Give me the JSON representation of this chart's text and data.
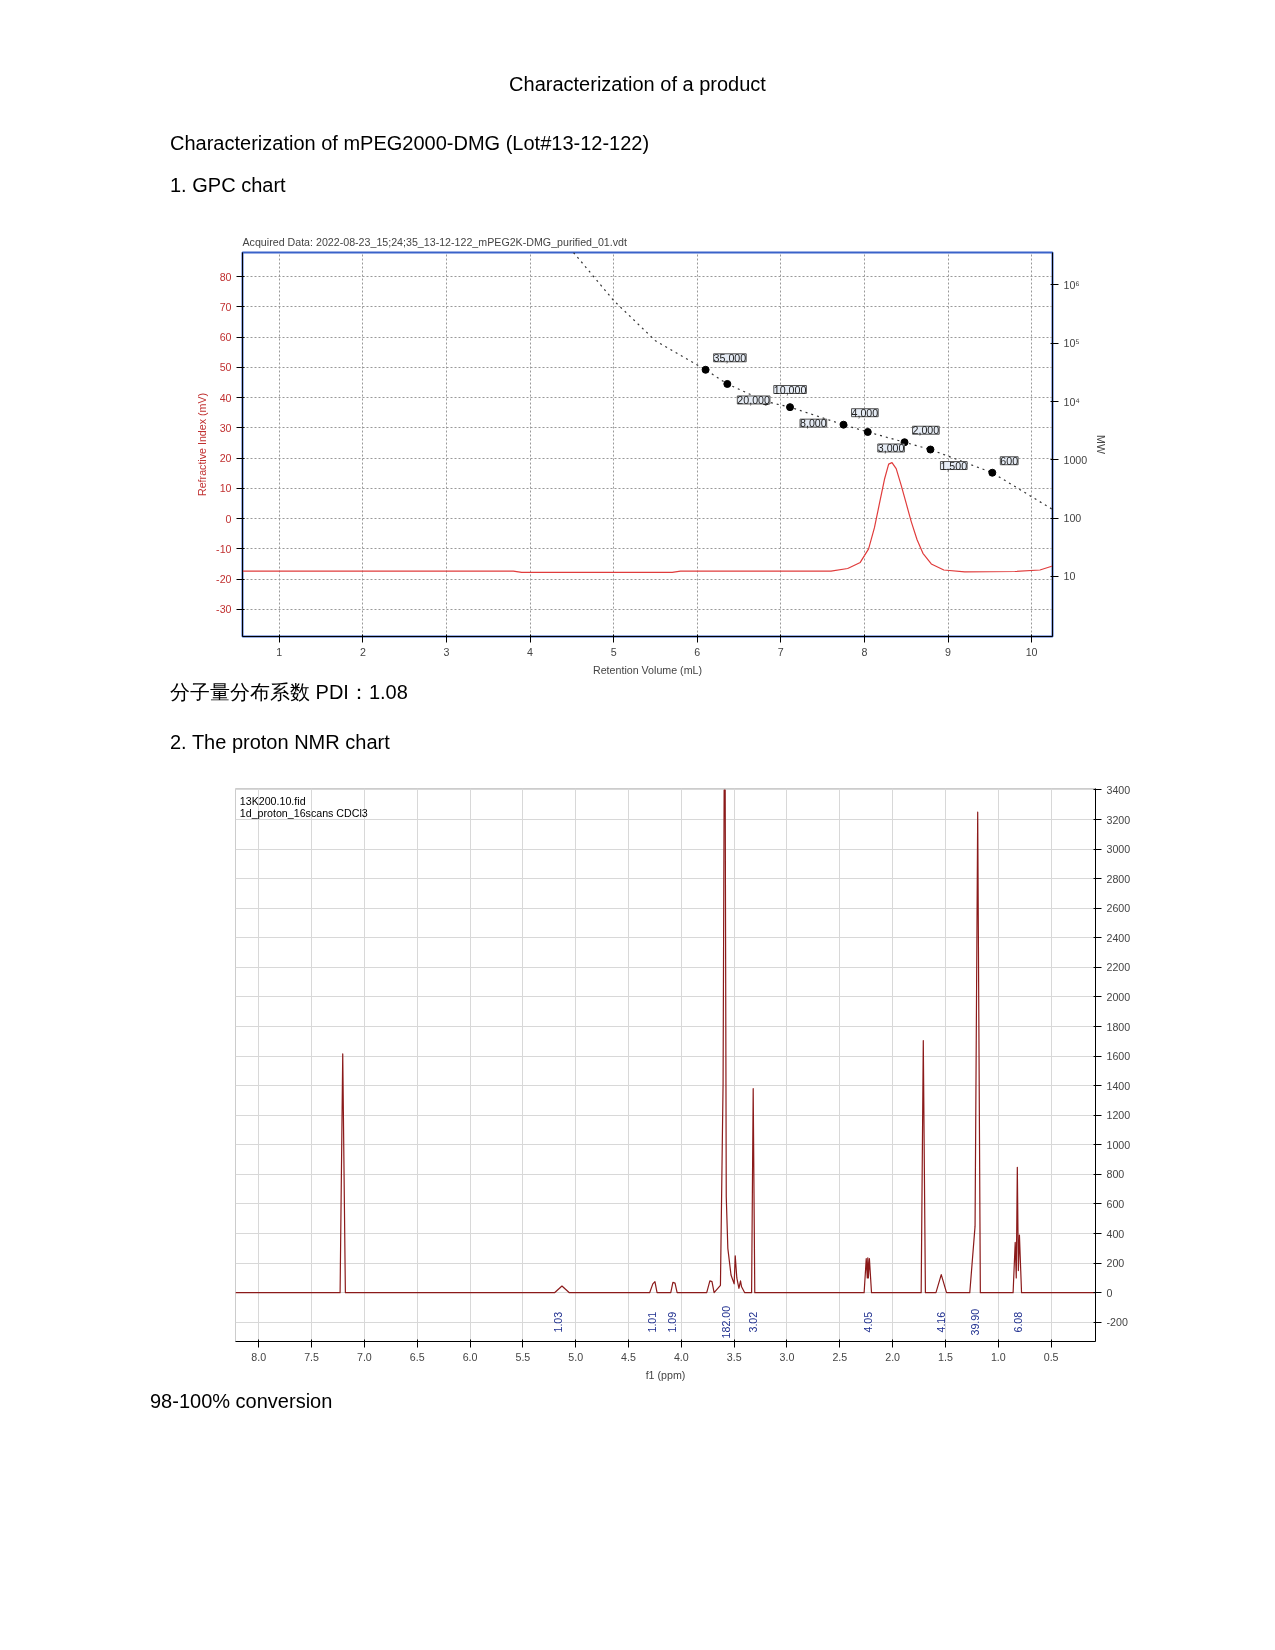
{
  "chart_data": [
    {
      "type": "line",
      "title": "Acquired Data: 2022-08-23_15;24;35_13-12-122_mPEG2K-DMG_purified_01.vdt",
      "xlabel": "Retention Volume (mL)",
      "ylabel": "Refractive Index (mV)",
      "y2label": "MW",
      "annotations": [
        "Characterization of a product",
        "Characterization of mPEG2000-DMG (Lot#13-12-122)",
        "1. GPC chart",
        "分子量分布系数 PDI：1.08"
      ],
      "xlim": [
        0.56,
        10.25
      ],
      "xticks": [
        1,
        2,
        3,
        4,
        5,
        6,
        7,
        8,
        9,
        10
      ],
      "ylim": [
        -39,
        88
      ],
      "yticks": [
        -30,
        -20,
        -10,
        0,
        10,
        20,
        30,
        40,
        50,
        60,
        70,
        80
      ],
      "y2lim": [
        0.93,
        3600000
      ],
      "y2ticks": [
        10,
        100,
        1000,
        {
          "value": 10000,
          "label": "10⁴"
        },
        {
          "value": 100000,
          "label": "10⁵"
        },
        {
          "value": 1000000,
          "label": "10⁶"
        }
      ],
      "log": "y2",
      "grid": true,
      "series": [
        {
          "type": "line",
          "color": "#e03c3c",
          "x": [
            0.56,
            3.8,
            3.9,
            5.7,
            5.8,
            7.6,
            7.8,
            7.95,
            8.05,
            8.12,
            8.18,
            8.24,
            8.29,
            8.33,
            8.38,
            8.44,
            8.5,
            8.56,
            8.63,
            8.7,
            8.8,
            8.95,
            9.2,
            9.8,
            10.1,
            10.25
          ],
          "values": [
            -17.4,
            -17.4,
            -17.8,
            -17.8,
            -17.4,
            -17.4,
            -16.5,
            -14.5,
            -10,
            -3,
            5,
            13,
            18,
            18.5,
            16.5,
            11,
            5,
            -1,
            -7,
            -11.5,
            -15,
            -17,
            -17.6,
            -17.5,
            -17,
            -15.7
          ]
        },
        {
          "type": "line",
          "axis": "y2",
          "line_style": "dotted",
          "color": "#333333",
          "x": [
            4.52,
            5.0,
            5.5,
            6.1,
            6.36,
            6.82,
            7.11,
            7.75,
            8.04,
            8.48,
            8.79,
            9.53,
            10.25
          ],
          "values": [
            3600000,
            540000,
            110000,
            35000,
            20000,
            10000,
            8000,
            4000,
            3000,
            2000,
            1500,
            600,
            141
          ]
        },
        {
          "type": "scatter",
          "axis": "y2",
          "marker": "circle",
          "color": "#000000",
          "x": [
            6.1,
            6.36,
            6.82,
            7.11,
            7.75,
            8.04,
            8.48,
            8.79,
            9.53
          ],
          "values": [
            35000,
            20000,
            10000,
            8000,
            4000,
            3000,
            2000,
            1500,
            600
          ],
          "value_labels": [
            "35,000",
            "20,000",
            "10,000",
            "8,000",
            "4,000",
            "3,000",
            "2,000",
            "1,500",
            "600"
          ]
        }
      ]
    },
    {
      "type": "line",
      "xlabel": "f1 (ppm)",
      "xlim": [
        8.22,
        0.08
      ],
      "xticks": [
        {
          "value": 8,
          "label": "8.0"
        },
        7.5,
        {
          "value": 7,
          "label": "7.0"
        },
        6.5,
        {
          "value": 6,
          "label": "6.0"
        },
        5.5,
        {
          "value": 5,
          "label": "5.0"
        },
        4.5,
        {
          "value": 4,
          "label": "4.0"
        },
        3.5,
        {
          "value": 3,
          "label": "3.0"
        },
        2.5,
        {
          "value": 2,
          "label": "2.0"
        },
        1.5,
        {
          "value": 1,
          "label": "1.0"
        },
        0.5
      ],
      "ylim": [
        -330,
        3410
      ],
      "yticks": [
        -200,
        0,
        200,
        400,
        600,
        800,
        1000,
        1200,
        1400,
        1600,
        1800,
        2000,
        2200,
        2400,
        2600,
        2800,
        3000,
        3200,
        3400
      ],
      "grid": true,
      "annotations": [
        "2. The proton NMR chart",
        "13K200.10.fid",
        "1d_proton_16scans CDCl3",
        "98-100% conversion",
        "1.03",
        "1.01",
        "1.09",
        "182.00",
        "3.02",
        "4.05",
        "4.16",
        "39.90",
        "6.08"
      ],
      "series": [
        {
          "color": "#8b1a1a",
          "x": [
            8.22,
            7.23,
            7.205,
            7.18,
            5.2,
            5.13,
            5.06,
            4.3,
            4.27,
            4.25,
            4.23,
            4.1,
            4.08,
            4.06,
            4.04,
            3.76,
            3.73,
            3.71,
            3.69,
            3.63,
            3.605,
            3.595,
            3.585,
            3.575,
            3.56,
            3.53,
            3.5,
            3.49,
            3.475,
            3.455,
            3.44,
            3.43,
            3.4,
            3.335,
            3.32,
            3.305,
            2.27,
            2.25,
            2.24,
            2.235,
            2.23,
            2.22,
            2.2,
            1.73,
            1.71,
            1.69,
            1.59,
            1.54,
            1.49,
            1.27,
            1.22,
            1.195,
            1.17,
            0.86,
            0.84,
            0.83,
            0.82,
            0.81,
            0.8,
            0.78,
            0.08
          ],
          "values": [
            0,
            0,
            1615,
            0,
            0,
            45,
            0,
            0,
            60,
            75,
            0,
            0,
            70,
            65,
            0,
            0,
            80,
            75,
            0,
            50,
            1415,
            3400,
            3400,
            650,
            300,
            120,
            60,
            250,
            100,
            30,
            80,
            40,
            0,
            0,
            1380,
            0,
            0,
            230,
            100,
            235,
            100,
            230,
            0,
            0,
            1705,
            0,
            0,
            122,
            0,
            0,
            450,
            3250,
            0,
            0,
            340,
            100,
            848,
            150,
            390,
            0,
            0
          ]
        }
      ]
    }
  ]
}
